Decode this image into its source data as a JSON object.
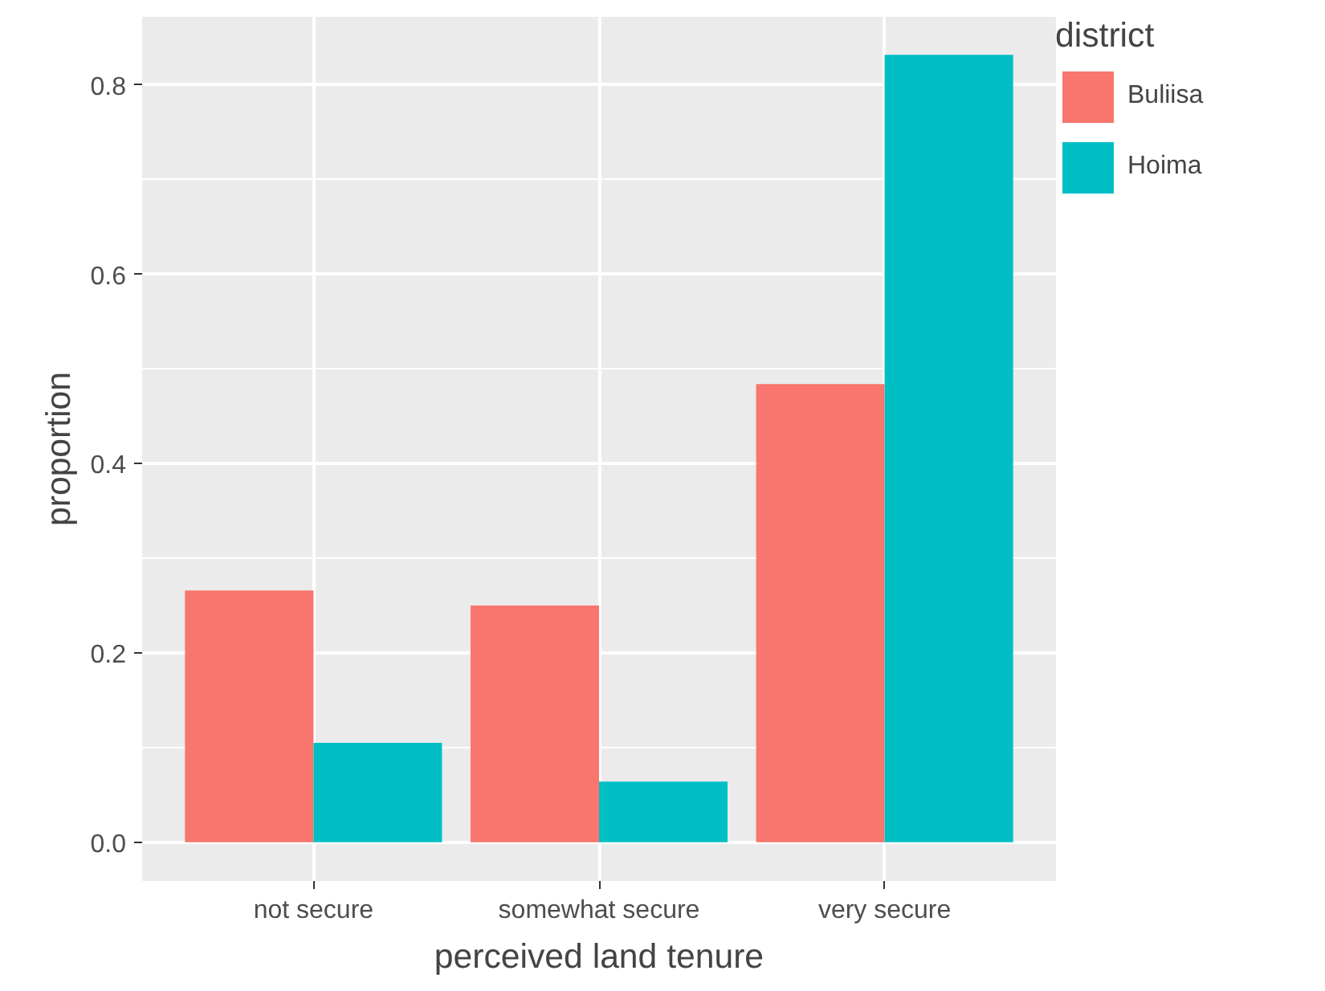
{
  "chart_data": {
    "type": "bar",
    "xlabel": "perceived land tenure",
    "ylabel": "proportion",
    "legend_title": "district",
    "categories": [
      "not secure",
      "somewhat secure",
      "very secure"
    ],
    "series": [
      {
        "name": "Buliisa",
        "color": "#f8766d",
        "values": [
          0.266,
          0.25,
          0.484
        ]
      },
      {
        "name": "Hoima",
        "color": "#00bfc4",
        "values": [
          0.105,
          0.064,
          0.832
        ]
      }
    ],
    "ylim": [
      -0.041,
      0.872
    ],
    "yticks": [
      {
        "value": 0,
        "label": "0.0"
      },
      {
        "value": 0.2,
        "label": "0.2"
      },
      {
        "value": 0.4,
        "label": "0.4"
      },
      {
        "value": 0.6,
        "label": "0.6"
      },
      {
        "value": 0.8,
        "label": "0.8"
      }
    ],
    "grid": true,
    "legend": "right"
  }
}
